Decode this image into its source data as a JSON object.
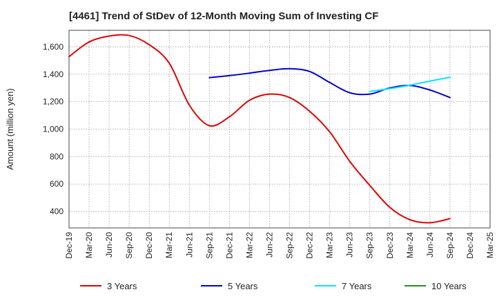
{
  "chart_data": {
    "type": "line",
    "title": "[4461]  Trend of StDev of 12-Month Moving Sum of Investing CF",
    "xlabel": "",
    "ylabel": "Amount (million yen)",
    "categories": [
      "Dec-19",
      "Mar-20",
      "Jun-20",
      "Sep-20",
      "Dec-20",
      "Mar-21",
      "Jun-21",
      "Sep-21",
      "Dec-21",
      "Mar-22",
      "Jun-22",
      "Sep-22",
      "Dec-22",
      "Mar-23",
      "Jun-23",
      "Sep-23",
      "Dec-23",
      "Mar-24",
      "Jun-24",
      "Sep-24",
      "Dec-24",
      "Mar-25"
    ],
    "ylim": [
      280,
      1720
    ],
    "yticks": [
      400,
      600,
      800,
      1000,
      1200,
      1400,
      1600
    ],
    "ytick_labels": [
      "400",
      "600",
      "800",
      "1,000",
      "1,200",
      "1,400",
      "1,600"
    ],
    "grid": true,
    "legend_position": "bottom",
    "series": [
      {
        "name": "3 Years",
        "color": "#dd0000",
        "values": [
          1528,
          1635,
          1678,
          1682,
          1615,
          1480,
          1175,
          1025,
          1090,
          1210,
          1255,
          1230,
          1130,
          980,
          765,
          590,
          430,
          340,
          318,
          348,
          null,
          null
        ]
      },
      {
        "name": "5 Years",
        "color": "#0000cc",
        "values": [
          null,
          null,
          null,
          null,
          null,
          null,
          null,
          1375,
          1390,
          1408,
          1428,
          1440,
          1420,
          1340,
          1265,
          1255,
          1300,
          1318,
          1285,
          1230,
          null,
          null
        ]
      },
      {
        "name": "7 Years",
        "color": "#00e5ff",
        "values": [
          null,
          null,
          null,
          null,
          null,
          null,
          null,
          null,
          null,
          null,
          null,
          null,
          null,
          null,
          null,
          1275,
          1295,
          1320,
          1350,
          1378,
          null,
          null
        ]
      },
      {
        "name": "10 Years",
        "color": "#228b22",
        "values": [
          null,
          null,
          null,
          null,
          null,
          null,
          null,
          null,
          null,
          null,
          null,
          null,
          null,
          null,
          null,
          null,
          null,
          null,
          null,
          null,
          null,
          null
        ]
      }
    ]
  }
}
